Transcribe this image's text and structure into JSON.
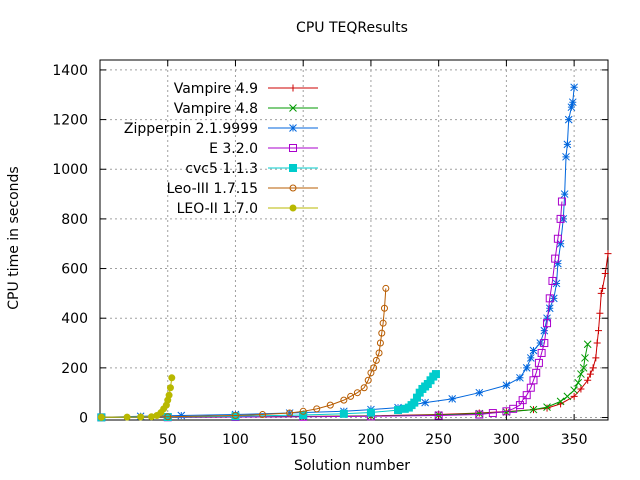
{
  "chart_data": {
    "type": "line",
    "title": "CPU TEQResults",
    "xlabel": "Solution number",
    "ylabel": "CPU time in seconds",
    "xlim": [
      0,
      375
    ],
    "ylim": [
      -10,
      1440
    ],
    "xticks": [
      50,
      100,
      150,
      200,
      250,
      300,
      350
    ],
    "yticks": [
      0,
      200,
      400,
      600,
      800,
      1000,
      1200,
      1400
    ],
    "grid": true,
    "legend_position": "top-left",
    "series": [
      {
        "name": "Vampire 4.9",
        "color": "#cc0000",
        "marker": "plus",
        "points": [
          [
            1,
            0.5
          ],
          [
            50,
            1
          ],
          [
            100,
            2
          ],
          [
            150,
            4
          ],
          [
            200,
            7
          ],
          [
            250,
            12
          ],
          [
            280,
            18
          ],
          [
            300,
            24
          ],
          [
            320,
            32
          ],
          [
            330,
            38
          ],
          [
            340,
            55
          ],
          [
            350,
            85
          ],
          [
            355,
            115
          ],
          [
            360,
            150
          ],
          [
            362,
            175
          ],
          [
            364,
            200
          ],
          [
            366,
            240
          ],
          [
            367,
            300
          ],
          [
            368,
            350
          ],
          [
            369,
            420
          ],
          [
            370,
            500
          ],
          [
            371,
            520
          ],
          [
            373,
            580
          ],
          [
            375,
            660
          ]
        ]
      },
      {
        "name": "Vampire 4.8",
        "color": "#009900",
        "marker": "x",
        "points": [
          [
            1,
            0.5
          ],
          [
            50,
            1
          ],
          [
            100,
            2
          ],
          [
            150,
            4
          ],
          [
            200,
            6
          ],
          [
            250,
            10
          ],
          [
            280,
            16
          ],
          [
            300,
            22
          ],
          [
            320,
            32
          ],
          [
            330,
            42
          ],
          [
            340,
            65
          ],
          [
            345,
            85
          ],
          [
            350,
            110
          ],
          [
            353,
            140
          ],
          [
            355,
            175
          ],
          [
            357,
            200
          ],
          [
            358,
            240
          ],
          [
            360,
            295
          ]
        ]
      },
      {
        "name": "Zipperpin 2.1.9999",
        "color": "#0066dd",
        "marker": "star",
        "points": [
          [
            1,
            1
          ],
          [
            30,
            5
          ],
          [
            60,
            8
          ],
          [
            100,
            12
          ],
          [
            140,
            18
          ],
          [
            180,
            25
          ],
          [
            200,
            32
          ],
          [
            220,
            40
          ],
          [
            240,
            60
          ],
          [
            260,
            75
          ],
          [
            280,
            100
          ],
          [
            300,
            130
          ],
          [
            310,
            160
          ],
          [
            315,
            200
          ],
          [
            318,
            240
          ],
          [
            320,
            270
          ],
          [
            325,
            300
          ],
          [
            328,
            350
          ],
          [
            330,
            400
          ],
          [
            332,
            440
          ],
          [
            335,
            480
          ],
          [
            337,
            540
          ],
          [
            338,
            620
          ],
          [
            340,
            700
          ],
          [
            342,
            800
          ],
          [
            343,
            900
          ],
          [
            344,
            1050
          ],
          [
            345,
            1100
          ],
          [
            346,
            1200
          ],
          [
            348,
            1250
          ],
          [
            349,
            1270
          ],
          [
            350,
            1330
          ]
        ]
      },
      {
        "name": "E 3.2.0",
        "color": "#aa00cc",
        "marker": "box",
        "points": [
          [
            1,
            0.5
          ],
          [
            50,
            1
          ],
          [
            100,
            2
          ],
          [
            150,
            3
          ],
          [
            200,
            5
          ],
          [
            250,
            8
          ],
          [
            280,
            12
          ],
          [
            290,
            18
          ],
          [
            300,
            25
          ],
          [
            305,
            35
          ],
          [
            310,
            50
          ],
          [
            312,
            70
          ],
          [
            315,
            90
          ],
          [
            318,
            120
          ],
          [
            320,
            150
          ],
          [
            322,
            180
          ],
          [
            324,
            220
          ],
          [
            326,
            260
          ],
          [
            328,
            300
          ],
          [
            330,
            380
          ],
          [
            332,
            480
          ],
          [
            334,
            550
          ],
          [
            336,
            640
          ],
          [
            338,
            720
          ],
          [
            340,
            800
          ],
          [
            341,
            870
          ]
        ]
      },
      {
        "name": "cvc5 1.1.3",
        "color": "#00cccc",
        "marker": "filled-box",
        "points": [
          [
            1,
            0.5
          ],
          [
            50,
            2
          ],
          [
            100,
            5
          ],
          [
            150,
            10
          ],
          [
            180,
            15
          ],
          [
            200,
            20
          ],
          [
            220,
            30
          ],
          [
            225,
            35
          ],
          [
            228,
            40
          ],
          [
            230,
            50
          ],
          [
            232,
            60
          ],
          [
            234,
            80
          ],
          [
            236,
            100
          ],
          [
            238,
            115
          ],
          [
            240,
            125
          ],
          [
            242,
            135
          ],
          [
            244,
            150
          ],
          [
            246,
            165
          ],
          [
            248,
            175
          ]
        ]
      },
      {
        "name": "Leo-III 1.7.15",
        "color": "#b85c00",
        "marker": "circle",
        "points": [
          [
            1,
            1
          ],
          [
            50,
            3
          ],
          [
            100,
            8
          ],
          [
            120,
            12
          ],
          [
            140,
            18
          ],
          [
            150,
            25
          ],
          [
            160,
            35
          ],
          [
            170,
            50
          ],
          [
            180,
            70
          ],
          [
            185,
            85
          ],
          [
            190,
            100
          ],
          [
            195,
            120
          ],
          [
            198,
            150
          ],
          [
            200,
            180
          ],
          [
            202,
            200
          ],
          [
            204,
            230
          ],
          [
            206,
            260
          ],
          [
            207,
            300
          ],
          [
            208,
            340
          ],
          [
            209,
            380
          ],
          [
            210,
            440
          ],
          [
            211,
            520
          ]
        ]
      },
      {
        "name": "LEO-II 1.7.0",
        "color": "#b8b800",
        "marker": "filled-circle",
        "points": [
          [
            1,
            1
          ],
          [
            20,
            1.5
          ],
          [
            30,
            2
          ],
          [
            38,
            3
          ],
          [
            42,
            8
          ],
          [
            45,
            20
          ],
          [
            47,
            35
          ],
          [
            49,
            50
          ],
          [
            50,
            70
          ],
          [
            51,
            90
          ],
          [
            52,
            120
          ],
          [
            53,
            160
          ]
        ]
      }
    ]
  }
}
